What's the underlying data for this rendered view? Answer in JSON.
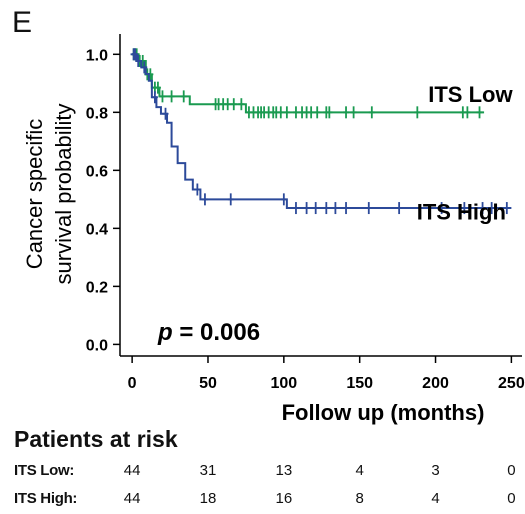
{
  "panel_label": "E",
  "chart_data": {
    "type": "line",
    "subtype": "kaplan-meier",
    "xlabel": "Follow up (months)",
    "ylabel": [
      "Cancer specific",
      "survival probability"
    ],
    "xlim": [
      -8,
      257
    ],
    "ylim": [
      -0.04,
      1.07
    ],
    "xticks": [
      0,
      50,
      100,
      150,
      200,
      250
    ],
    "yticks": [
      0.0,
      0.2,
      0.4,
      0.6,
      0.8,
      1.0
    ],
    "ytick_labels": [
      "0.0",
      "0.2",
      "0.4",
      "0.6",
      "0.8",
      "1.0"
    ],
    "annotation": {
      "prefix": "p",
      "text": " = 0.006"
    },
    "series": [
      {
        "name": "ITS Low",
        "color": "#1a9a50",
        "steps": [
          [
            0,
            1.0
          ],
          [
            4,
            0.977
          ],
          [
            9,
            0.931
          ],
          [
            13,
            0.885
          ],
          [
            18,
            0.855
          ],
          [
            30,
            0.855
          ],
          [
            38,
            0.828
          ],
          [
            58,
            0.828
          ],
          [
            75,
            0.8
          ],
          [
            232,
            0.8
          ]
        ],
        "censor_x": [
          1,
          2,
          3,
          5,
          7,
          10,
          12,
          15,
          17,
          20,
          26,
          34,
          55,
          57,
          60,
          63,
          67,
          72,
          77,
          80,
          83,
          85,
          87,
          90,
          93,
          95,
          98,
          102,
          108,
          112,
          115,
          118,
          122,
          128,
          130,
          141,
          146,
          158,
          188,
          218,
          221,
          229
        ]
      },
      {
        "name": "ITS High",
        "color": "#2c4a9a",
        "steps": [
          [
            0,
            1.0
          ],
          [
            3,
            0.977
          ],
          [
            6,
            0.955
          ],
          [
            9,
            0.932
          ],
          [
            11,
            0.909
          ],
          [
            13,
            0.852
          ],
          [
            16,
            0.818
          ],
          [
            19,
            0.795
          ],
          [
            23,
            0.764
          ],
          [
            26,
            0.682
          ],
          [
            30,
            0.625
          ],
          [
            35,
            0.568
          ],
          [
            40,
            0.534
          ],
          [
            45,
            0.5
          ],
          [
            100,
            0.5
          ],
          [
            102,
            0.47
          ],
          [
            250,
            0.47
          ]
        ],
        "censor_x": [
          1,
          2,
          4,
          8,
          15,
          22,
          43,
          48,
          65,
          100,
          108,
          115,
          121,
          128,
          134,
          141,
          156,
          176,
          204,
          219,
          231,
          237,
          247
        ]
      }
    ],
    "series_labels": [
      {
        "series": 0,
        "text": "ITS Low",
        "x": 223,
        "y": 0.835
      },
      {
        "series": 1,
        "text": "ITS High",
        "x": 217,
        "y": 0.43
      }
    ]
  },
  "risk_table": {
    "heading": "Patients at risk",
    "columns": [
      0,
      50,
      100,
      150,
      200,
      250
    ],
    "rows": [
      {
        "label": "ITS Low:",
        "values": [
          "44",
          "31",
          "13",
          "4",
          "3",
          "0"
        ]
      },
      {
        "label": "ITS High:",
        "values": [
          "44",
          "18",
          "16",
          "8",
          "4",
          "0"
        ]
      }
    ]
  }
}
